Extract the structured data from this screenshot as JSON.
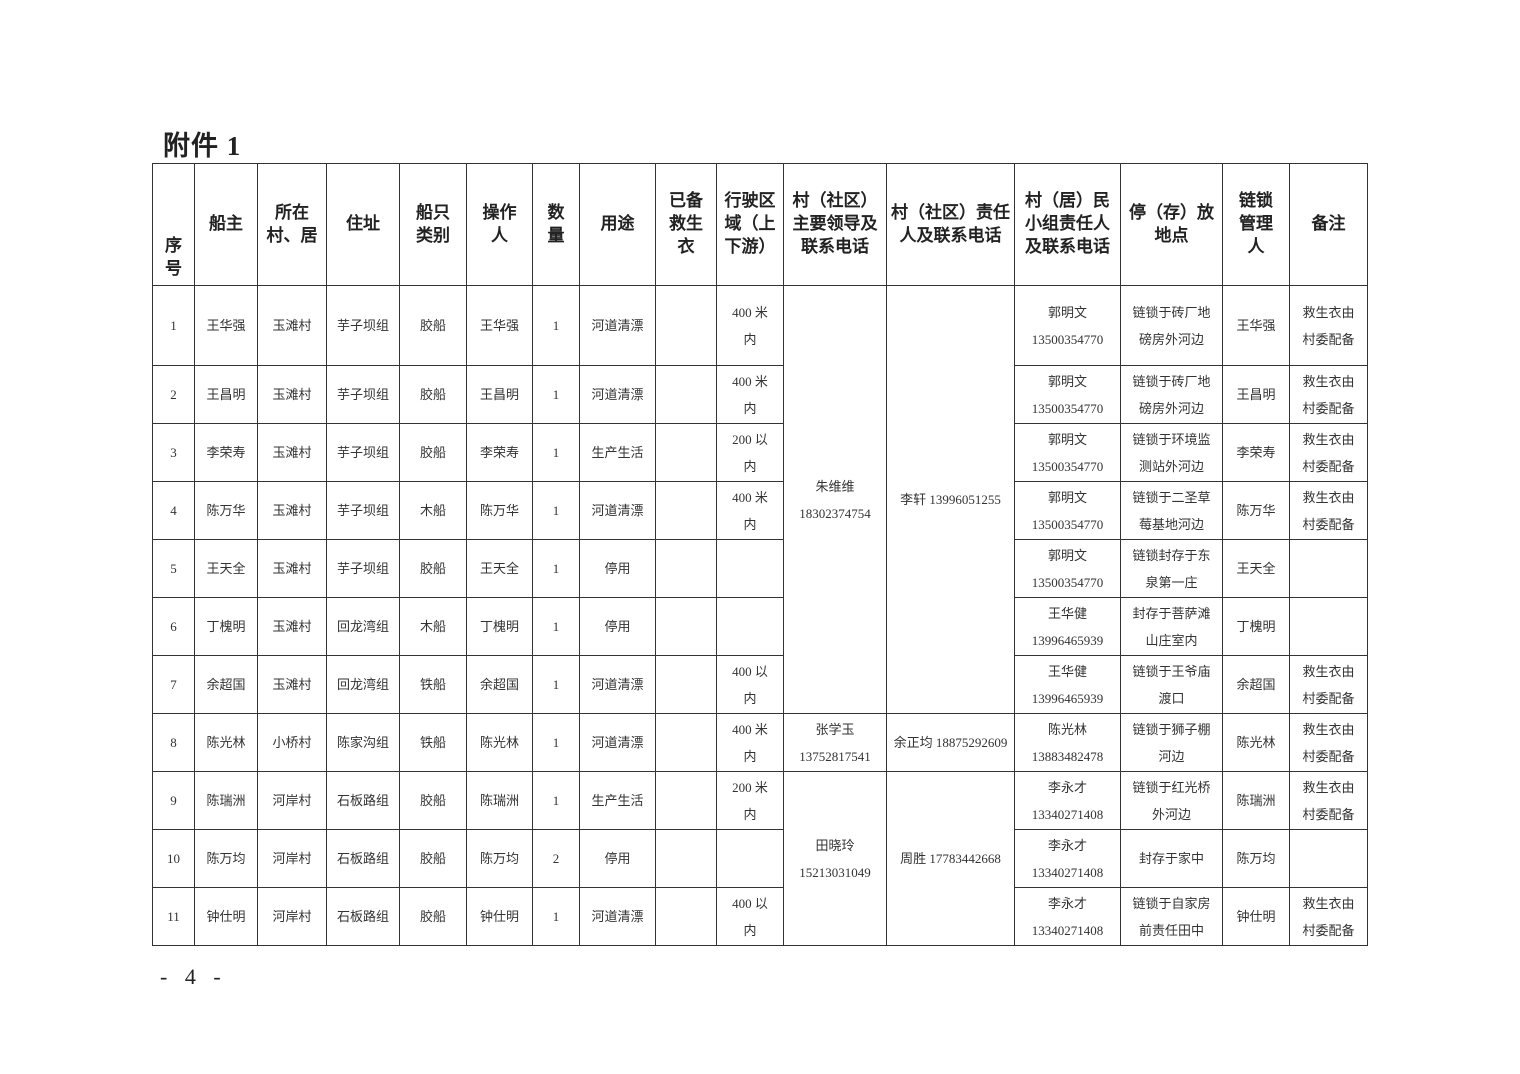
{
  "title": "附件 1",
  "footer": "- 4 -",
  "table": {
    "headers": [
      "序号",
      "船主",
      "所在村、居",
      "住址",
      "船只类别",
      "操作人",
      "数量",
      "用途",
      "已备救生衣",
      "行驶区域（上下游）",
      "村（社区）主要领导及联系电话",
      "村（社区）责任人及联系电话",
      "村（居）民小组责任人及联系电话",
      "停（存）放地点",
      "链锁管理人",
      "备注"
    ],
    "village_groups": [
      {
        "leader": "朱维维 18302374754",
        "responsible": "李轩 13996051255"
      },
      {
        "leader": "张学玉 13752817541",
        "responsible": "余正均 18875292609"
      },
      {
        "leader": "田晓玲 15213031049",
        "responsible": "周胜 17783442668"
      }
    ],
    "rows": [
      {
        "no": "1",
        "owner": "王华强",
        "village": "玉滩村",
        "address": "芋子坝组",
        "type": "胶船",
        "operator": "王华强",
        "qty": "1",
        "use": "河道清漂",
        "lifejacket": "",
        "area": "400 米内",
        "group_contact": "郭明文 13500354770",
        "location": "链锁于砖厂地磅房外河边",
        "manager": "王华强",
        "remark": "救生衣由村委配备"
      },
      {
        "no": "2",
        "owner": "王昌明",
        "village": "玉滩村",
        "address": "芋子坝组",
        "type": "胶船",
        "operator": "王昌明",
        "qty": "1",
        "use": "河道清漂",
        "lifejacket": "",
        "area": "400 米内",
        "group_contact": "郭明文 13500354770",
        "location": "链锁于砖厂地磅房外河边",
        "manager": "王昌明",
        "remark": "救生衣由村委配备"
      },
      {
        "no": "3",
        "owner": "李荣寿",
        "village": "玉滩村",
        "address": "芋子坝组",
        "type": "胶船",
        "operator": "李荣寿",
        "qty": "1",
        "use": "生产生活",
        "lifejacket": "",
        "area": "200 以内",
        "group_contact": "郭明文 13500354770",
        "location": "链锁于环境监测站外河边",
        "manager": "李荣寿",
        "remark": "救生衣由村委配备"
      },
      {
        "no": "4",
        "owner": "陈万华",
        "village": "玉滩村",
        "address": "芋子坝组",
        "type": "木船",
        "operator": "陈万华",
        "qty": "1",
        "use": "河道清漂",
        "lifejacket": "",
        "area": "400 米内",
        "group_contact": "郭明文 13500354770",
        "location": "链锁于二圣草莓基地河边",
        "manager": "陈万华",
        "remark": "救生衣由村委配备"
      },
      {
        "no": "5",
        "owner": "王天全",
        "village": "玉滩村",
        "address": "芋子坝组",
        "type": "胶船",
        "operator": "王天全",
        "qty": "1",
        "use": "停用",
        "lifejacket": "",
        "area": "",
        "group_contact": "郭明文 13500354770",
        "location": "链锁封存于东泉第一庄",
        "manager": "王天全",
        "remark": ""
      },
      {
        "no": "6",
        "owner": "丁槐明",
        "village": "玉滩村",
        "address": "回龙湾组",
        "type": "木船",
        "operator": "丁槐明",
        "qty": "1",
        "use": "停用",
        "lifejacket": "",
        "area": "",
        "group_contact": "王华健 13996465939",
        "location": "封存于菩萨滩山庄室内",
        "manager": "丁槐明",
        "remark": ""
      },
      {
        "no": "7",
        "owner": "余超国",
        "village": "玉滩村",
        "address": "回龙湾组",
        "type": "铁船",
        "operator": "余超国",
        "qty": "1",
        "use": "河道清漂",
        "lifejacket": "",
        "area": "400 以内",
        "group_contact": "王华健 13996465939",
        "location": "链锁于王爷庙渡口",
        "manager": "余超国",
        "remark": "救生衣由村委配备"
      },
      {
        "no": "8",
        "owner": "陈光林",
        "village": "小桥村",
        "address": "陈家沟组",
        "type": "铁船",
        "operator": "陈光林",
        "qty": "1",
        "use": "河道清漂",
        "lifejacket": "",
        "area": "400 米内",
        "group_contact": "陈光林 13883482478",
        "location": "链锁于狮子棚河边",
        "manager": "陈光林",
        "remark": "救生衣由村委配备"
      },
      {
        "no": "9",
        "owner": "陈瑞洲",
        "village": "河岸村",
        "address": "石板路组",
        "type": "胶船",
        "operator": "陈瑞洲",
        "qty": "1",
        "use": "生产生活",
        "lifejacket": "",
        "area": "200 米内",
        "group_contact": "李永才 13340271408",
        "location": "链锁于红光桥外河边",
        "manager": "陈瑞洲",
        "remark": "救生衣由村委配备"
      },
      {
        "no": "10",
        "owner": "陈万均",
        "village": "河岸村",
        "address": "石板路组",
        "type": "胶船",
        "operator": "陈万均",
        "qty": "2",
        "use": "停用",
        "lifejacket": "",
        "area": "",
        "group_contact": "李永才 13340271408",
        "location": "封存于家中",
        "manager": "陈万均",
        "remark": ""
      },
      {
        "no": "11",
        "owner": "钟仕明",
        "village": "河岸村",
        "address": "石板路组",
        "type": "胶船",
        "operator": "钟仕明",
        "qty": "1",
        "use": "河道清漂",
        "lifejacket": "",
        "area": "400 以内",
        "group_contact": "李永才 13340271408",
        "location": "链锁于自家房前责任田中",
        "manager": "钟仕明",
        "remark": "救生衣由村委配备"
      }
    ]
  }
}
